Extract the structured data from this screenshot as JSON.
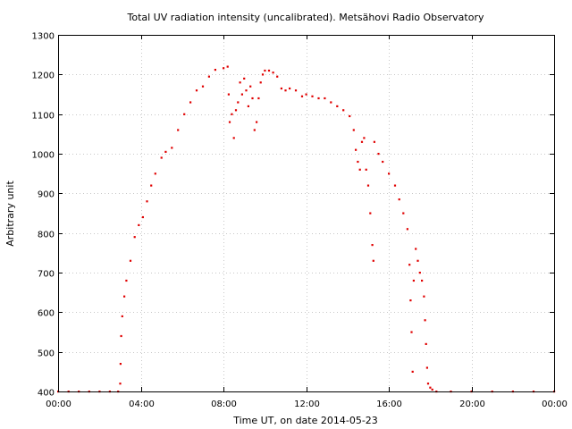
{
  "chart_data": {
    "type": "scatter",
    "title": "Total UV radiation intensity (uncalibrated). Metsähovi Radio Observatory",
    "xlabel": "Time UT, on date 2014-05-23",
    "ylabel": "Arbitrary unit",
    "xlim": [
      0,
      24
    ],
    "ylim": [
      400,
      1300
    ],
    "x_ticks": [
      0,
      4,
      8,
      12,
      16,
      20,
      24
    ],
    "x_tick_labels": [
      "00:00",
      "04:00",
      "08:00",
      "12:00",
      "16:00",
      "20:00",
      "00:00"
    ],
    "y_ticks": [
      400,
      500,
      600,
      700,
      800,
      900,
      1000,
      1100,
      1200,
      1300
    ],
    "y_tick_labels": [
      "400",
      "500",
      "600",
      "700",
      "800",
      "900",
      "1000",
      "1100",
      "1200",
      "1300"
    ],
    "grid": true,
    "series_color": "#e00000",
    "series": [
      {
        "values": [
          [
            0.0,
            400
          ],
          [
            0.5,
            400
          ],
          [
            1.0,
            400
          ],
          [
            1.5,
            400
          ],
          [
            2.0,
            400
          ],
          [
            2.5,
            400
          ],
          [
            2.9,
            400
          ],
          [
            3.0,
            420
          ],
          [
            3.02,
            470
          ],
          [
            3.05,
            540
          ],
          [
            3.1,
            590
          ],
          [
            3.2,
            640
          ],
          [
            3.3,
            680
          ],
          [
            3.5,
            730
          ],
          [
            3.7,
            790
          ],
          [
            3.9,
            820
          ],
          [
            4.1,
            840
          ],
          [
            4.3,
            880
          ],
          [
            4.5,
            920
          ],
          [
            4.7,
            950
          ],
          [
            5.0,
            990
          ],
          [
            5.2,
            1005
          ],
          [
            5.5,
            1015
          ],
          [
            5.8,
            1060
          ],
          [
            6.1,
            1100
          ],
          [
            6.4,
            1130
          ],
          [
            6.7,
            1160
          ],
          [
            7.0,
            1170
          ],
          [
            7.3,
            1195
          ],
          [
            7.6,
            1212
          ],
          [
            8.0,
            1216
          ],
          [
            8.2,
            1220
          ],
          [
            8.25,
            1150
          ],
          [
            8.3,
            1080
          ],
          [
            8.4,
            1100
          ],
          [
            8.5,
            1040
          ],
          [
            8.6,
            1110
          ],
          [
            8.7,
            1130
          ],
          [
            8.8,
            1180
          ],
          [
            8.9,
            1150
          ],
          [
            9.0,
            1190
          ],
          [
            9.1,
            1160
          ],
          [
            9.2,
            1120
          ],
          [
            9.3,
            1170
          ],
          [
            9.4,
            1140
          ],
          [
            9.5,
            1060
          ],
          [
            9.6,
            1080
          ],
          [
            9.7,
            1140
          ],
          [
            9.8,
            1180
          ],
          [
            9.9,
            1200
          ],
          [
            10.0,
            1210
          ],
          [
            10.2,
            1210
          ],
          [
            10.4,
            1205
          ],
          [
            10.6,
            1195
          ],
          [
            10.8,
            1165
          ],
          [
            11.0,
            1160
          ],
          [
            11.2,
            1165
          ],
          [
            11.5,
            1160
          ],
          [
            11.8,
            1145
          ],
          [
            12.0,
            1150
          ],
          [
            12.3,
            1145
          ],
          [
            12.6,
            1140
          ],
          [
            12.9,
            1140
          ],
          [
            13.2,
            1130
          ],
          [
            13.5,
            1120
          ],
          [
            13.8,
            1110
          ],
          [
            14.1,
            1095
          ],
          [
            14.3,
            1060
          ],
          [
            14.4,
            1010
          ],
          [
            14.5,
            980
          ],
          [
            14.6,
            960
          ],
          [
            14.7,
            1030
          ],
          [
            14.8,
            1040
          ],
          [
            14.9,
            960
          ],
          [
            15.0,
            920
          ],
          [
            15.1,
            850
          ],
          [
            15.2,
            770
          ],
          [
            15.25,
            730
          ],
          [
            15.3,
            1030
          ],
          [
            15.5,
            1000
          ],
          [
            15.7,
            980
          ],
          [
            16.0,
            950
          ],
          [
            16.3,
            920
          ],
          [
            16.5,
            885
          ],
          [
            16.7,
            850
          ],
          [
            16.9,
            810
          ],
          [
            17.0,
            720
          ],
          [
            17.05,
            630
          ],
          [
            17.1,
            550
          ],
          [
            17.15,
            450
          ],
          [
            17.2,
            680
          ],
          [
            17.3,
            760
          ],
          [
            17.4,
            730
          ],
          [
            17.5,
            700
          ],
          [
            17.6,
            680
          ],
          [
            17.7,
            640
          ],
          [
            17.75,
            580
          ],
          [
            17.8,
            520
          ],
          [
            17.85,
            460
          ],
          [
            17.9,
            420
          ],
          [
            18.0,
            410
          ],
          [
            18.1,
            405
          ],
          [
            18.3,
            400
          ],
          [
            19.0,
            400
          ],
          [
            20.0,
            400
          ],
          [
            21.0,
            400
          ],
          [
            22.0,
            400
          ],
          [
            23.0,
            400
          ],
          [
            24.0,
            400
          ]
        ]
      }
    ]
  }
}
